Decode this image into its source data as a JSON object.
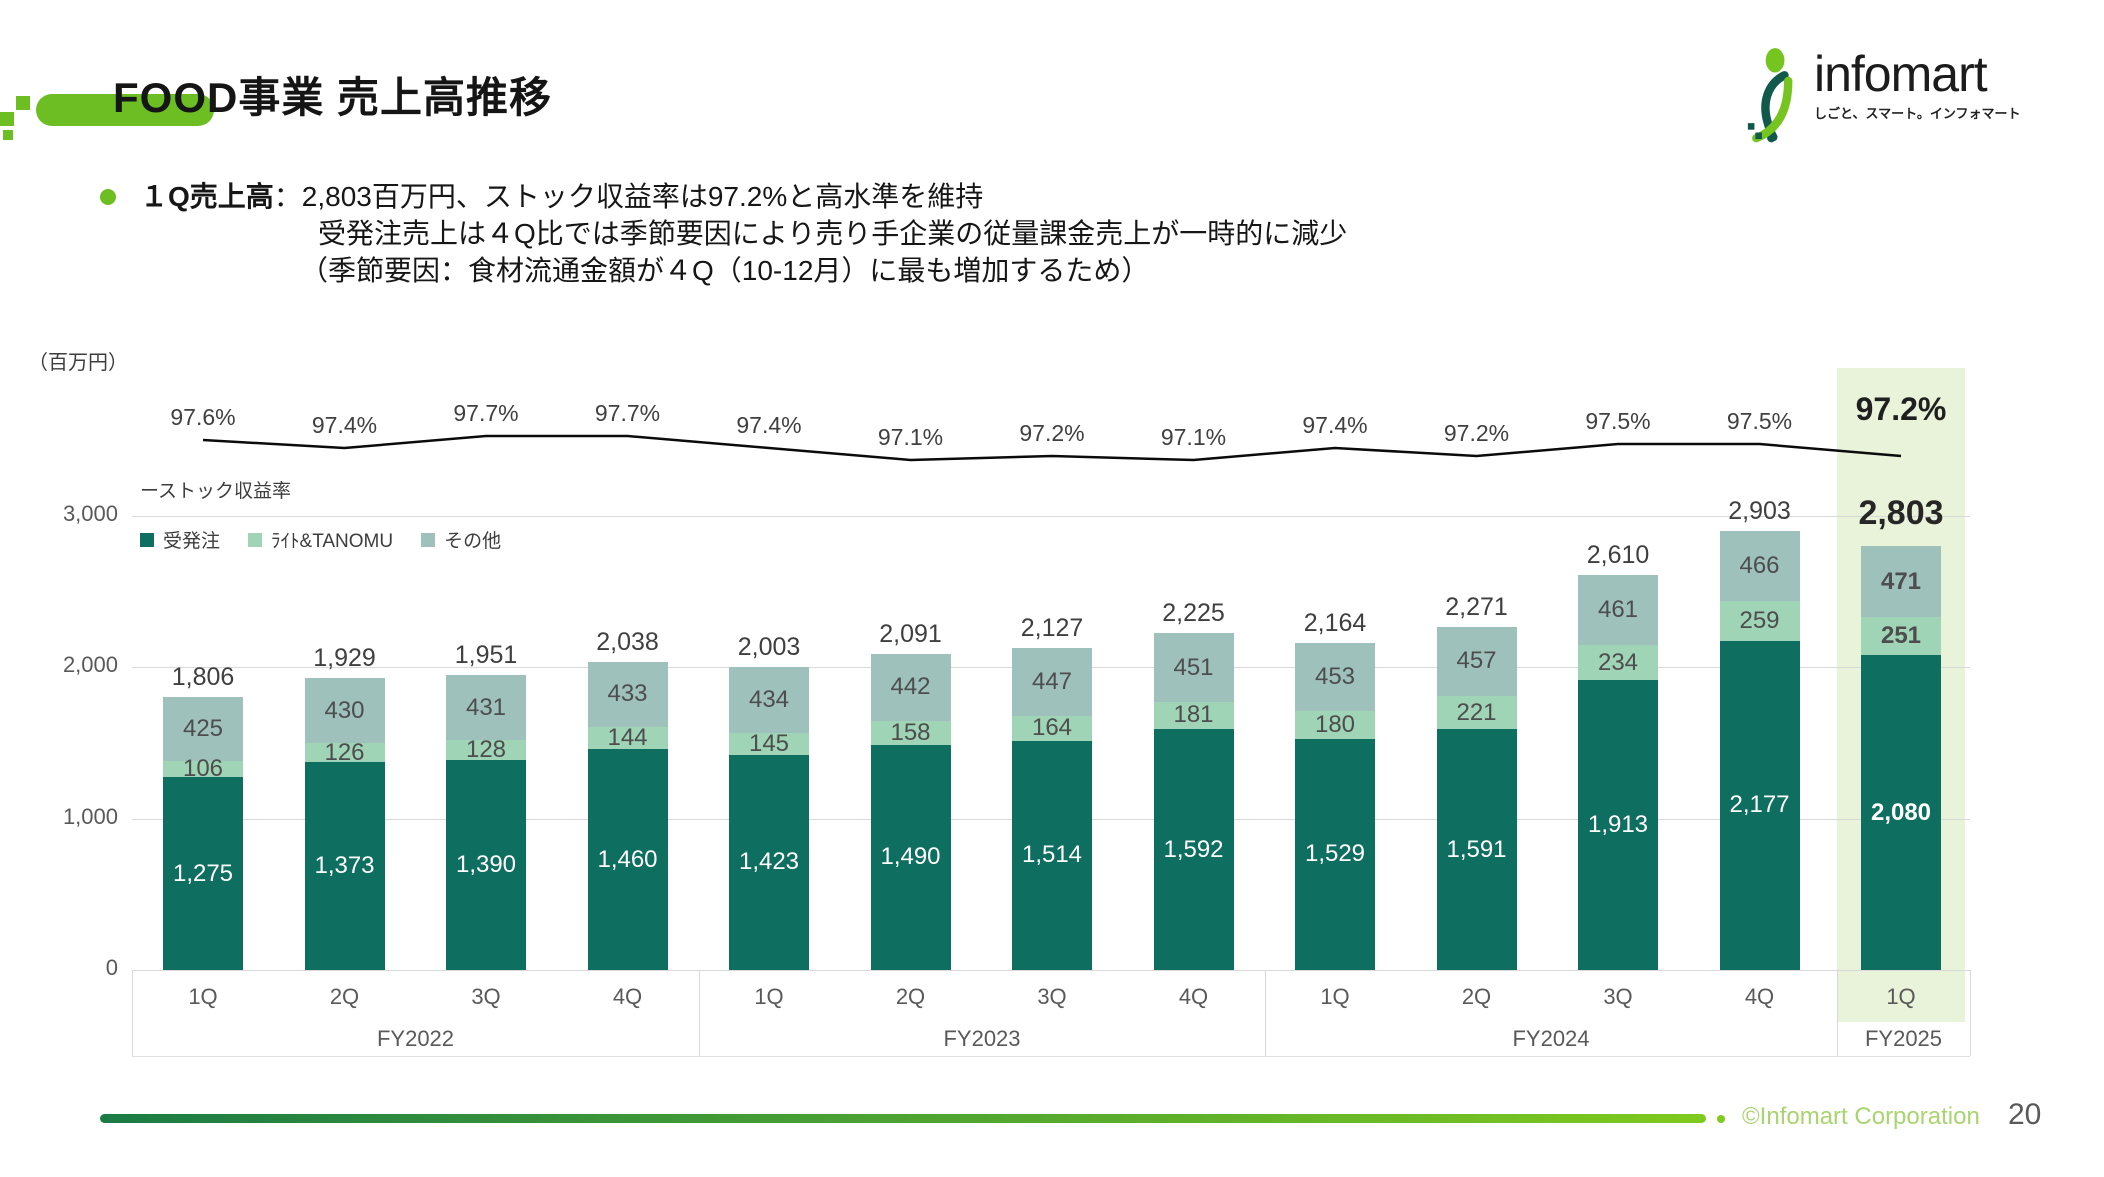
{
  "header": {
    "title": "FOOD事業 売上高推移"
  },
  "logo": {
    "name": "infomart",
    "tagline": "しごと、スマート。インフォマート"
  },
  "bullet": {
    "label": "１Q売上高",
    "line1": "：2,803百万円、ストック収益率は97.2%と高水準を維持",
    "line2": "受発注売上は４Q比では季節要因により売り手企業の従量課金売上が一時的に減少",
    "line3": "（季節要因：食材流通金額が４Q（10-12月）に最も増加するため）"
  },
  "colors": {
    "accent": "#6CBE22",
    "highlight": "#E9F3D9",
    "series_order": "#0E6E5F",
    "series_light_tanomu": "#9FD4B6",
    "series_other": "#9EC2BB",
    "rate_line": "#0B0B0B",
    "footer_gradient_start": "#1B7B45",
    "footer_gradient_end": "#7FCA1E",
    "copyright_text": "#A9D46E"
  },
  "chart_data": {
    "type": "bar",
    "stacked": true,
    "unit_label": "（百万円）",
    "legend_line_label": "ーストック収益率",
    "legend_position": "top-left",
    "grid": true,
    "categories": [
      "1Q",
      "2Q",
      "3Q",
      "4Q",
      "1Q",
      "2Q",
      "3Q",
      "4Q",
      "1Q",
      "2Q",
      "3Q",
      "4Q",
      "1Q"
    ],
    "groups": [
      {
        "label": "FY2022",
        "span": 4
      },
      {
        "label": "FY2023",
        "span": 4
      },
      {
        "label": "FY2024",
        "span": 4
      },
      {
        "label": "FY2025",
        "span": 1
      }
    ],
    "series": [
      {
        "name": "受発注",
        "color": "#0E6E5F",
        "label_color": "#FFFFFF",
        "values": [
          1275,
          1373,
          1390,
          1460,
          1423,
          1490,
          1514,
          1592,
          1529,
          1591,
          1913,
          2177,
          2080
        ]
      },
      {
        "name": "ﾗｲﾄ&TANOMU",
        "color": "#9FD4B6",
        "label_color": "#4D4D4D",
        "values": [
          106,
          126,
          128,
          144,
          145,
          158,
          164,
          181,
          180,
          221,
          234,
          259,
          251
        ]
      },
      {
        "name": "その他",
        "color": "#9EC2BB",
        "label_color": "#4D4D4D",
        "values": [
          425,
          430,
          431,
          433,
          434,
          442,
          447,
          451,
          453,
          457,
          461,
          466,
          471
        ]
      }
    ],
    "totals": [
      1806,
      1929,
      1951,
      2038,
      2003,
      2091,
      2127,
      2225,
      2164,
      2271,
      2610,
      2903,
      2803
    ],
    "line_series": {
      "name": "ストック収益率",
      "values": [
        97.6,
        97.4,
        97.7,
        97.7,
        97.4,
        97.1,
        97.2,
        97.1,
        97.4,
        97.2,
        97.5,
        97.5,
        97.2
      ]
    },
    "y_axis": {
      "ticks": [
        0,
        1000,
        2000,
        3000
      ],
      "tick_labels": [
        "0",
        "1,000",
        "2,000",
        "3,000"
      ],
      "range": [
        0,
        3000
      ]
    },
    "highlight_index": 12
  },
  "footer": {
    "copyright": "©Infomart Corporation",
    "page": "20"
  }
}
